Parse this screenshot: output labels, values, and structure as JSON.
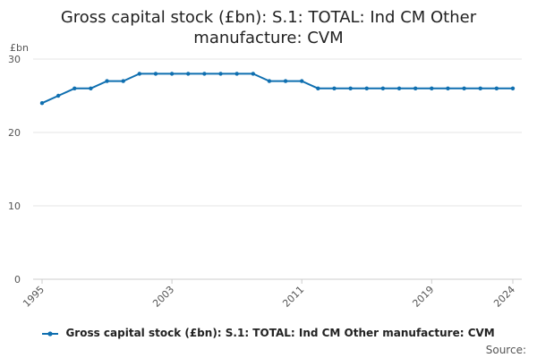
{
  "chart_data": {
    "type": "line",
    "title": "Gross capital stock (£bn): S.1: TOTAL: Ind CM Other manufacture: CVM",
    "ylabel": "£bn",
    "xlabel": "",
    "x": [
      1995,
      1996,
      1997,
      1998,
      1999,
      2000,
      2001,
      2002,
      2003,
      2004,
      2005,
      2006,
      2007,
      2008,
      2009,
      2010,
      2011,
      2012,
      2013,
      2014,
      2015,
      2016,
      2017,
      2018,
      2019,
      2020,
      2021,
      2022,
      2023,
      2024
    ],
    "series": [
      {
        "name": "Gross capital stock (£bn): S.1: TOTAL: Ind CM Other manufacture: CVM",
        "values": [
          24,
          25,
          26,
          26,
          27,
          27,
          28,
          28,
          28,
          28,
          28,
          28,
          28,
          28,
          27,
          27,
          27,
          26,
          26,
          26,
          26,
          26,
          26,
          26,
          26,
          26,
          26,
          26,
          26,
          26
        ]
      }
    ],
    "x_tick_labels": [
      "1995",
      "2003",
      "2011",
      "2019",
      "2024"
    ],
    "y_ticks": [
      0,
      10,
      20,
      30
    ],
    "ylim": [
      0,
      30
    ],
    "xlim": [
      1995,
      2024
    ],
    "grid": true,
    "legend_position": "bottom",
    "line_color": "#0f6fb0"
  },
  "source_label": "Source:"
}
